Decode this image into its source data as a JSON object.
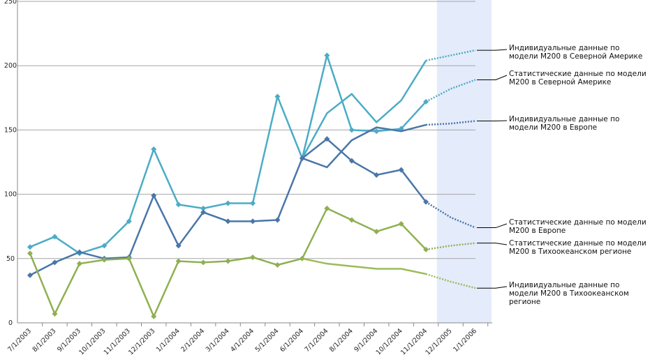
{
  "chart_data": {
    "type": "line",
    "categories": [
      "7/1/2003",
      "8/1/2003",
      "9/1/2003",
      "10/1/2003",
      "11/1/2003",
      "12/1/2003",
      "1/1/2004",
      "2/1/2004",
      "3/1/2004",
      "4/1/2004",
      "5/1/2004",
      "6/1/2004",
      "7/1/2004",
      "8/1/2004",
      "9/1/2004",
      "10/1/2004",
      "11/1/2004",
      "12/1/2005",
      "1/1/2006"
    ],
    "ylim": [
      0,
      250
    ],
    "yticks": [
      0,
      50,
      100,
      150,
      200,
      250
    ],
    "grid": true,
    "series": [
      {
        "name": "Индивидуальные данные по модели M200 в Северной Америке",
        "color": "#4bacc6",
        "markers": false,
        "values": [
          null,
          null,
          null,
          null,
          null,
          null,
          null,
          null,
          null,
          null,
          null,
          128,
          163,
          178,
          156,
          173,
          204,
          null,
          null
        ],
        "forecast": [
          null,
          null,
          null,
          null,
          null,
          null,
          null,
          null,
          null,
          null,
          null,
          null,
          null,
          null,
          null,
          null,
          null,
          208,
          212
        ]
      },
      {
        "name": "Статистические данные по модели M200 в Северной Америке",
        "color": "#4bacc6",
        "markers": true,
        "values": [
          59,
          67,
          54,
          60,
          79,
          135,
          92,
          89,
          93,
          93,
          176,
          128,
          208,
          150,
          149,
          151,
          172,
          null,
          null
        ],
        "forecast": [
          null,
          null,
          null,
          null,
          null,
          null,
          null,
          null,
          null,
          null,
          null,
          null,
          null,
          null,
          null,
          null,
          null,
          182,
          189
        ]
      },
      {
        "name": "Индивидуальные данные по модели M200 в Европе",
        "color": "#4a76a8",
        "markers": false,
        "values": [
          null,
          null,
          null,
          null,
          null,
          null,
          null,
          null,
          null,
          null,
          null,
          128,
          121,
          142,
          152,
          149,
          154,
          null,
          null
        ],
        "forecast": [
          null,
          null,
          null,
          null,
          null,
          null,
          null,
          null,
          null,
          null,
          null,
          null,
          null,
          null,
          null,
          null,
          null,
          155,
          157
        ]
      },
      {
        "name": "Статистические данные по модели M200 в Европе",
        "color": "#4a76a8",
        "markers": true,
        "values": [
          37,
          47,
          55,
          50,
          51,
          99,
          60,
          86,
          79,
          79,
          80,
          128,
          143,
          126,
          115,
          119,
          94,
          null,
          null
        ],
        "forecast": [
          null,
          null,
          null,
          null,
          null,
          null,
          null,
          null,
          null,
          null,
          null,
          null,
          null,
          null,
          null,
          null,
          null,
          82,
          74
        ]
      },
      {
        "name": "Статистические данные по модели M200 в Тихоокеанском регионе",
        "color": "#8fb051",
        "markers": true,
        "values": [
          54,
          7,
          46,
          49,
          50,
          5,
          48,
          47,
          48,
          51,
          45,
          50,
          89,
          80,
          71,
          77,
          57,
          null,
          null
        ],
        "forecast": [
          null,
          null,
          null,
          null,
          null,
          null,
          null,
          null,
          null,
          null,
          null,
          null,
          null,
          null,
          null,
          null,
          null,
          60,
          62
        ]
      },
      {
        "name": "Индивидуальные данные по модели M200 в Тихоокеанском регионе",
        "color": "#9bbb59",
        "markers": false,
        "values": [
          null,
          null,
          null,
          null,
          null,
          null,
          null,
          null,
          null,
          null,
          null,
          50,
          46,
          44,
          42,
          42,
          38,
          null,
          null
        ],
        "forecast": [
          null,
          null,
          null,
          null,
          null,
          null,
          null,
          null,
          null,
          null,
          null,
          null,
          null,
          null,
          null,
          null,
          null,
          32,
          27
        ]
      }
    ]
  }
}
